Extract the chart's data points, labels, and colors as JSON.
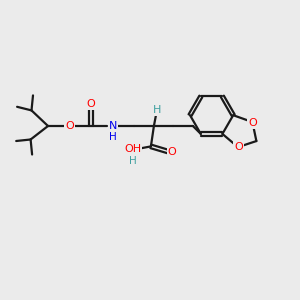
{
  "bg_color": "#ebebeb",
  "bond_color": "#1a1a1a",
  "O_color": "#ff0000",
  "N_color": "#0000ee",
  "line_width": 1.6,
  "figsize": [
    3.0,
    3.0
  ],
  "dpi": 100,
  "xlim": [
    0,
    10
  ],
  "ylim": [
    0,
    10
  ]
}
